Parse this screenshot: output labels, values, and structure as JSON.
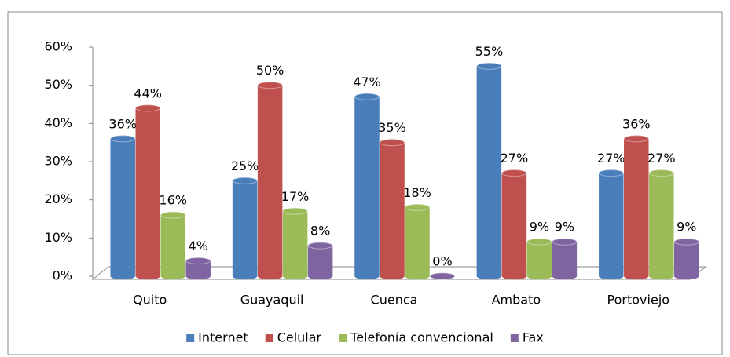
{
  "chart_data": {
    "type": "bar",
    "categories": [
      "Quito",
      "Guayaquil",
      "Cuenca",
      "Ambato",
      "Portoviejo"
    ],
    "series": [
      {
        "name": "Internet",
        "color": "#4a7ebb",
        "values": [
          36,
          25,
          47,
          55,
          27
        ],
        "value_labels": [
          "36%",
          "25%",
          "47%",
          "55%",
          "27%"
        ]
      },
      {
        "name": "Celular",
        "color": "#c0504d",
        "values": [
          44,
          50,
          35,
          27,
          36
        ],
        "value_labels": [
          "44%",
          "50%",
          "35%",
          "27%",
          "36%"
        ]
      },
      {
        "name": "Telefonía convencional",
        "color": "#9bbb59",
        "values": [
          16,
          17,
          18,
          9,
          27
        ],
        "value_labels": [
          "16%",
          "17%",
          "18%",
          "9%",
          "27%"
        ]
      },
      {
        "name": "Fax",
        "color": "#8064a2",
        "values": [
          4,
          8,
          0,
          9,
          9
        ],
        "value_labels": [
          "4%",
          "8%",
          "0%",
          "9%",
          "9%"
        ]
      }
    ],
    "ylim": [
      0,
      60
    ],
    "yticks": [
      {
        "value": 0,
        "label": "0%"
      },
      {
        "value": 10,
        "label": "10%"
      },
      {
        "value": 20,
        "label": "20%"
      },
      {
        "value": 30,
        "label": "30%"
      },
      {
        "value": 40,
        "label": "40%"
      },
      {
        "value": 50,
        "label": "50%"
      },
      {
        "value": 60,
        "label": "60%"
      }
    ],
    "legend": "bottom"
  }
}
